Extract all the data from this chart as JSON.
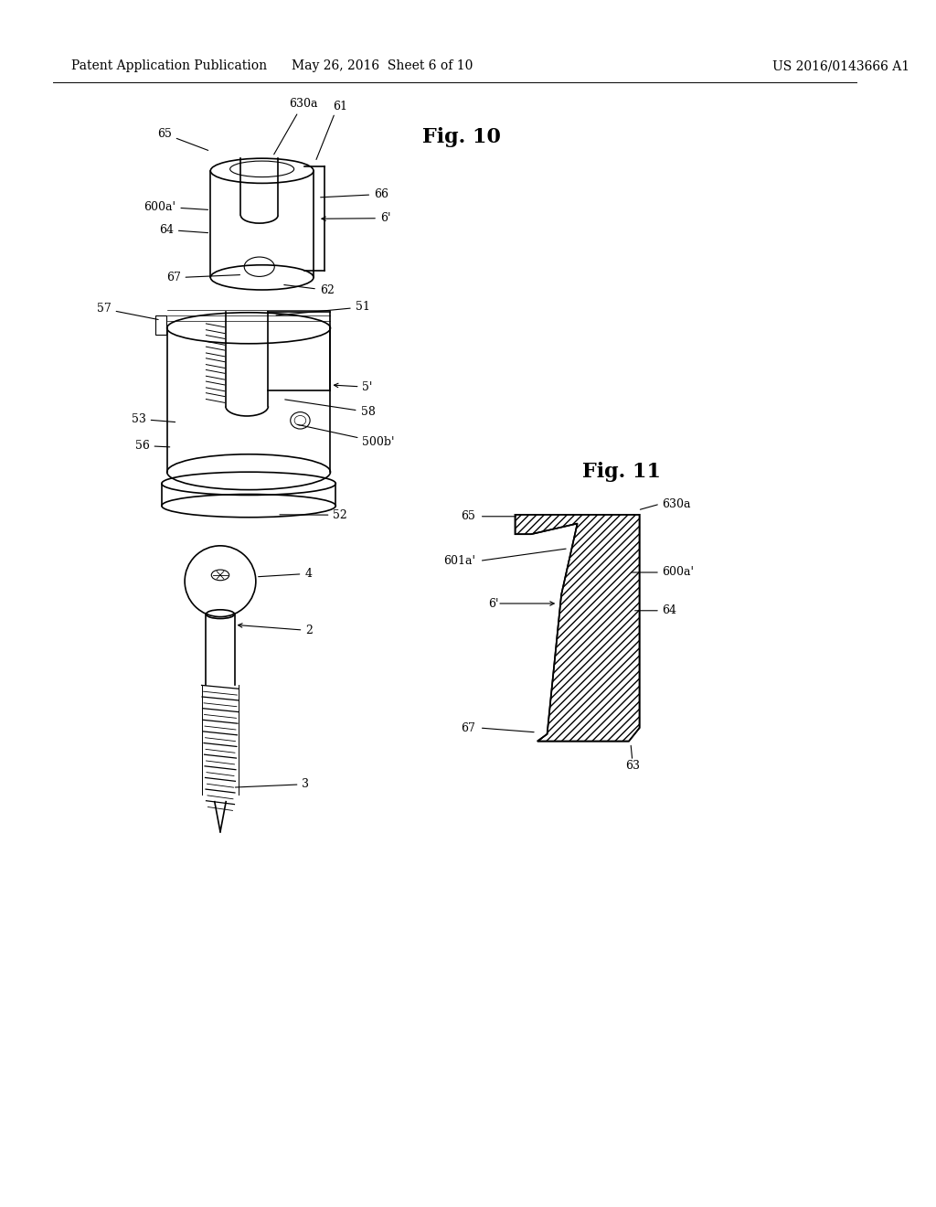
{
  "bg_color": "#ffffff",
  "line_color": "#000000",
  "header_left": "Patent Application Publication",
  "header_center": "May 26, 2016  Sheet 6 of 10",
  "header_right": "US 2016/0143666 A1",
  "fig10_label": "Fig. 10",
  "fig11_label": "Fig. 11",
  "header_fontsize": 10,
  "fig_label_fontsize": 16,
  "annotation_fontsize": 9
}
